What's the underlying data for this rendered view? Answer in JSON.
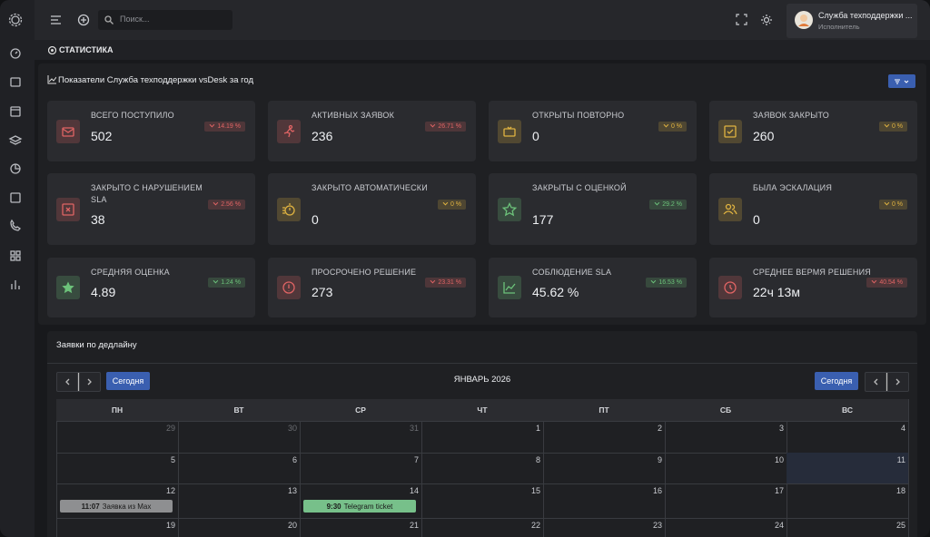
{
  "topbar": {
    "search_placeholder": "Поиск...",
    "user_name": "Служба техподдержки ...",
    "user_role": "Исполнитель"
  },
  "section_title": "СТАТИСТИКА",
  "stats_title": "Показатели Служба техподдержки vsDesk за год",
  "stats": [
    {
      "label": "ВСЕГО ПОСТУПИЛО",
      "value": "502",
      "change": "14.19 %",
      "color": "#e06464"
    },
    {
      "label": "АКТИВНЫХ ЗАЯВОК",
      "value": "236",
      "change": "26.71 %",
      "color": "#e06464"
    },
    {
      "label": "ОТКРЫТЫ ПОВТОРНО",
      "value": "0",
      "change": "0 %",
      "color": "#e0b341"
    },
    {
      "label": "ЗАЯВОК ЗАКРЫТО",
      "value": "260",
      "change": "0 %",
      "color": "#e0b341"
    },
    {
      "label": "ЗАКРЫТО С НАРУШЕНИЕМ SLA",
      "value": "38",
      "change": "2.56 %",
      "color": "#e06464"
    },
    {
      "label": "ЗАКРЫТО АВТОМАТИЧЕСКИ",
      "value": "0",
      "change": "0 %",
      "color": "#e0b341"
    },
    {
      "label": "ЗАКРЫТЫ С ОЦЕНКОЙ",
      "value": "177",
      "change": "29.2 %",
      "color": "#6cc27a"
    },
    {
      "label": "БЫЛА ЭСКАЛАЦИЯ",
      "value": "0",
      "change": "0 %",
      "color": "#e0b341"
    },
    {
      "label": "СРЕДНЯЯ ОЦЕНКА",
      "value": "4.89",
      "change": "1.24 %",
      "color": "#6cc27a"
    },
    {
      "label": "ПРОСРОЧЕНО РЕШЕНИЕ",
      "value": "273",
      "change": "23.31 %",
      "color": "#e06464"
    },
    {
      "label": "СОБЛЮДЕНИЕ SLA",
      "value": "45.62 %",
      "change": "16.53 %",
      "color": "#6cc27a"
    },
    {
      "label": "СРЕДНЕЕ ВЕРМЯ РЕШЕНИЯ",
      "value": "22ч 13м",
      "change": "40.54 %",
      "color": "#e06464"
    }
  ],
  "calendar": {
    "title": "Заявки по дедлайну",
    "today_left": "Сегодня",
    "today_right": "Сегодня",
    "month": "ЯНВАРЬ 2026",
    "weekdays": [
      "ПН",
      "ВТ",
      "СР",
      "ЧТ",
      "ПТ",
      "СБ",
      "ВС"
    ],
    "weeks": [
      [
        {
          "date": "29",
          "color": "#6b6d72"
        },
        {
          "date": "30",
          "color": "#6b6d72"
        },
        {
          "date": "31",
          "color": "#6b6d72"
        },
        {
          "date": "1"
        },
        {
          "date": "2"
        },
        {
          "date": "3"
        },
        {
          "date": "4"
        }
      ],
      [
        {
          "date": "5"
        },
        {
          "date": "6"
        },
        {
          "date": "7"
        },
        {
          "date": "8"
        },
        {
          "date": "9"
        },
        {
          "date": "10"
        },
        {
          "date": "11"
        }
      ],
      [
        {
          "date": "12",
          "event": {
            "time": "11:07",
            "text": "Заявка из Max",
            "color": "#8e8f91"
          }
        },
        {
          "date": "13"
        },
        {
          "date": "14",
          "event": {
            "time": "9:30",
            "text": "Telegram ticket",
            "color": "#77c08a"
          }
        },
        {
          "date": "15"
        },
        {
          "date": "16"
        },
        {
          "date": "17"
        },
        {
          "date": "18"
        }
      ],
      [
        {
          "date": "19"
        },
        {
          "date": "20"
        },
        {
          "date": "21"
        },
        {
          "date": "22"
        },
        {
          "date": "23"
        },
        {
          "date": "24"
        },
        {
          "date": "25"
        }
      ]
    ]
  }
}
